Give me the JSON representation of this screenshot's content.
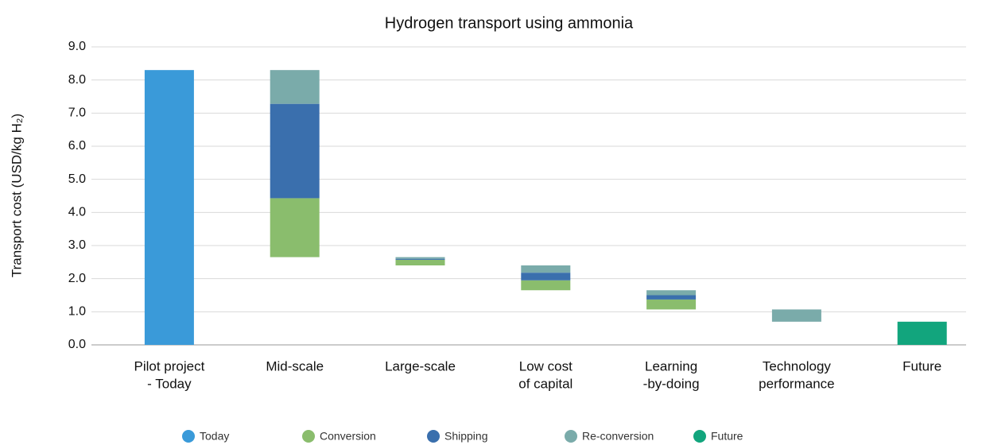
{
  "chart_data": {
    "type": "waterfall",
    "title": "Hydrogen transport using ammonia",
    "y_label": "Transport cost (USD/kg H₂)",
    "categories": [
      [
        "Pilot project",
        "- Today"
      ],
      [
        "Mid-scale"
      ],
      [
        "Large-scale"
      ],
      [
        "Low cost",
        "of capital"
      ],
      [
        "Learning",
        "-by-doing"
      ],
      [
        "Technology",
        "performance"
      ],
      [
        "Future"
      ]
    ],
    "series": [
      {
        "name": "Today",
        "color": "#3a9ad9",
        "values": [
          8.3,
          null,
          null,
          null,
          null,
          null,
          null
        ]
      },
      {
        "name": "Conversion",
        "color": "#8abd6d",
        "values": [
          null,
          1.78,
          0.17,
          0.3,
          0.3,
          null,
          null
        ]
      },
      {
        "name": "Shipping",
        "color": "#3a6fad",
        "values": [
          null,
          2.85,
          0.03,
          0.23,
          0.13,
          null,
          null
        ]
      },
      {
        "name": "Re-conversion",
        "color": "#7aabaa",
        "values": [
          null,
          1.02,
          0.05,
          0.22,
          0.15,
          0.37,
          null
        ]
      },
      {
        "name": "Future",
        "color": "#12a57d",
        "values": [
          null,
          null,
          null,
          null,
          null,
          null,
          0.7
        ]
      }
    ],
    "ylim": [
      0,
      9
    ],
    "yticks": [
      {
        "value": 0,
        "label": "0.0"
      },
      {
        "value": 1,
        "label": "1.0"
      },
      {
        "value": 2,
        "label": "2.0"
      },
      {
        "value": 3,
        "label": "3.0"
      },
      {
        "value": 4,
        "label": "4.0"
      },
      {
        "value": 5,
        "label": "5.0"
      },
      {
        "value": 6,
        "label": "6.0"
      },
      {
        "value": 7,
        "label": "7.0"
      },
      {
        "value": 8,
        "label": "8.0"
      },
      {
        "value": 9,
        "label": "9.0"
      }
    ],
    "grid": true,
    "legend": "bottom"
  }
}
